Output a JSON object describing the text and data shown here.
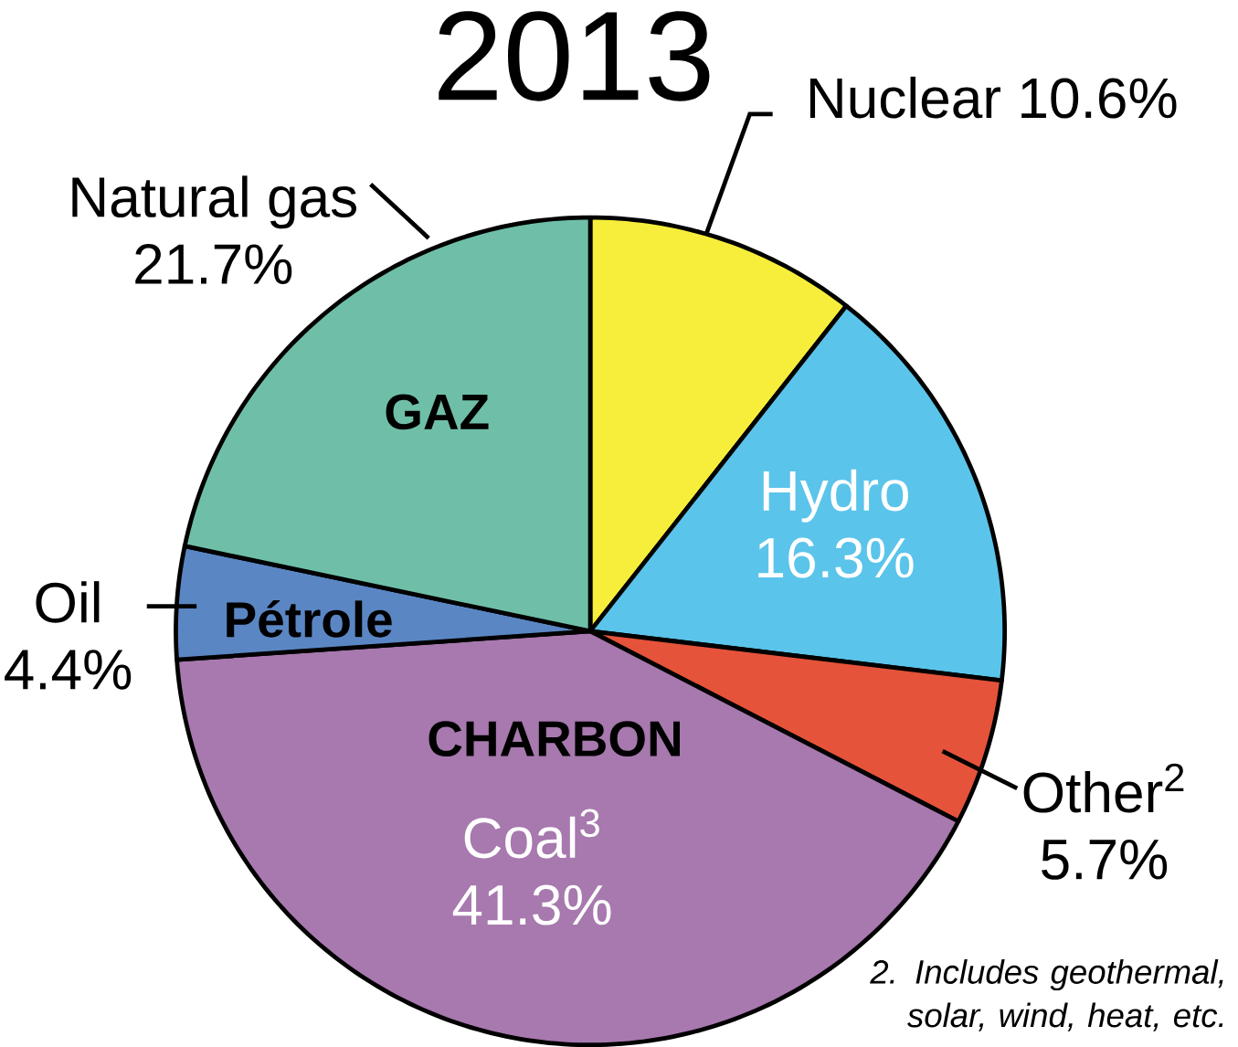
{
  "chart_data": {
    "type": "pie",
    "title": "2013",
    "categories": [
      "Nuclear",
      "Hydro",
      "Other$^{2}$",
      "Coal$^{3}$",
      "Oil",
      "Natural gas"
    ],
    "values": [
      10.6,
      16.3,
      5.7,
      41.3,
      4.4,
      21.7
    ],
    "value_labels": [
      "10.6%",
      "16.3%",
      "5.7%",
      "41.3%",
      "4.4%",
      "21.7%"
    ],
    "colors": [
      "#f7ee3b",
      "#5bc4ea",
      "#e5533a",
      "#a779ae",
      "#5b86c4",
      "#6fbfa8"
    ],
    "annotations": [
      "GAZ",
      "Pétrole",
      "CHARBON",
      "2. Includes geothermal, solar, wind, heat, etc."
    ]
  }
}
